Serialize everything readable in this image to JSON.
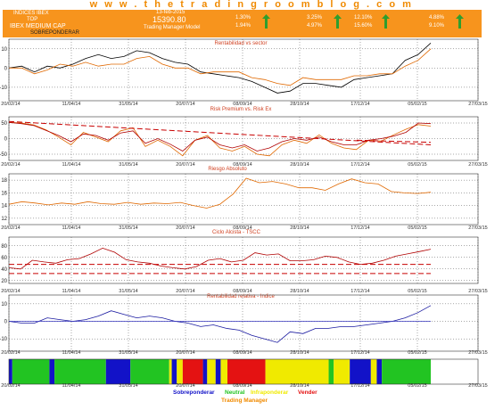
{
  "site_url": "w w w . t h e t r a d i n g r o o m b l o g . c o m",
  "header": {
    "index_name": "INDICES IBEX",
    "line2": "TOP",
    "ticker": "IBEX MEDIUM CAP",
    "status": "SOBREPONDERAR",
    "date": "13-feb-2015",
    "price": "15390.80",
    "model": "Trading Manager Model",
    "stats": [
      {
        "top": "1.30%",
        "bottom": "1.94%"
      },
      {
        "top": "3.25%",
        "bottom": "4.97%"
      },
      {
        "top": "12.10%",
        "bottom": "15.60%"
      },
      {
        "top": "4.88%",
        "bottom": "9.10%"
      }
    ],
    "colors": {
      "bar": "#f7941d",
      "arrow": "#2e9e2e"
    }
  },
  "legend": {
    "items": [
      {
        "label": "Sobreponderar",
        "color": "#1212c8"
      },
      {
        "label": "Neutral",
        "color": "#22c422"
      },
      {
        "label": "Infraponderar",
        "color": "#f0ea00"
      },
      {
        "label": "Vender",
        "color": "#e41212"
      }
    ],
    "caption": "Trading Manager"
  },
  "chart_data": [
    {
      "type": "line",
      "title": "Rentabilidad vs sector",
      "x_ticks": [
        "20/02/14",
        "11/04/14",
        "31/05/14",
        "20/07/14",
        "08/09/14",
        "28/10/14",
        "17/12/14",
        "05/02/15",
        "27/03/15"
      ],
      "y_ticks": [
        10,
        0,
        -10
      ],
      "ylim": [
        -17,
        15
      ],
      "grid": true,
      "series": [
        {
          "color": "#000000",
          "values": [
            0,
            1,
            -2,
            1,
            0,
            2,
            5,
            7,
            5,
            6,
            9,
            8,
            5,
            3,
            2,
            -2,
            -3,
            -4,
            -5,
            -7,
            -10,
            -13,
            -12,
            -8,
            -8,
            -9,
            -10,
            -6,
            -5,
            -4,
            -3,
            4,
            7,
            13
          ]
        },
        {
          "color": "#e06800",
          "values": [
            0,
            0,
            -3,
            -1,
            2,
            1,
            3,
            1,
            2,
            2,
            5,
            6,
            2,
            0,
            0,
            -3,
            -2,
            -2,
            -2,
            -5,
            -6,
            -8,
            -9,
            -5,
            -6,
            -6,
            -6,
            -4,
            -4,
            -3,
            -3,
            1,
            4,
            10
          ]
        }
      ]
    },
    {
      "type": "line",
      "title": "Risk Premium vs. Risk Ex",
      "x_ticks": [
        "20/02/14",
        "11/04/14",
        "31/05/14",
        "20/07/14",
        "08/09/14",
        "28/10/14",
        "17/12/14",
        "05/02/15",
        "27/03/15"
      ],
      "y_ticks": [
        50,
        0,
        -50
      ],
      "ylim": [
        -70,
        70
      ],
      "grid": true,
      "series": [
        {
          "color": "#e06800",
          "values": [
            52,
            50,
            44,
            28,
            5,
            -20,
            20,
            5,
            -10,
            25,
            35,
            -25,
            -5,
            -25,
            -55,
            -5,
            10,
            -30,
            -40,
            -25,
            -50,
            -55,
            -20,
            -5,
            -15,
            12,
            -15,
            -30,
            -35,
            -5,
            -8,
            12,
            30,
            45,
            40
          ]
        },
        {
          "color": "#b00000",
          "values": [
            52,
            48,
            42,
            26,
            10,
            -10,
            15,
            10,
            -5,
            18,
            25,
            -15,
            0,
            -18,
            -40,
            -5,
            5,
            -20,
            -30,
            -20,
            -40,
            -30,
            -10,
            0,
            -5,
            5,
            -10,
            -20,
            -20,
            -5,
            0,
            8,
            20,
            50,
            48
          ]
        },
        {
          "color": "#c80000",
          "dashed": true,
          "values": [
            55,
            -20
          ]
        },
        {
          "color": "#c80000",
          "dashed": true,
          "values": [
            -5,
            -12
          ]
        }
      ]
    },
    {
      "type": "line",
      "title": "Riesgo Absoluto",
      "x_ticks": [
        "20/02/14",
        "11/04/14",
        "31/05/14",
        "20/07/14",
        "08/09/14",
        "28/10/14",
        "17/12/14",
        "05/02/15",
        "27/03/15"
      ],
      "y_ticks": [
        18,
        16,
        14,
        12
      ],
      "ylim": [
        11,
        19
      ],
      "grid": true,
      "series": [
        {
          "color": "#e06800",
          "values": [
            14.2,
            14.6,
            14.4,
            14.1,
            14.4,
            14.2,
            14.6,
            14.3,
            14.2,
            14.5,
            14.2,
            14.4,
            14.3,
            14.5,
            14.0,
            13.6,
            14.2,
            15.8,
            18.3,
            17.6,
            17.8,
            17.4,
            16.8,
            16.8,
            16.4,
            17.4,
            18.2,
            17.6,
            17.4,
            16.2,
            16.0,
            15.9,
            16.1
          ]
        }
      ]
    },
    {
      "type": "line",
      "title": "Ciclo Alcista - TSCC",
      "x_ticks": [
        "20/02/14",
        "11/04/14",
        "31/05/14",
        "20/07/14",
        "08/09/14",
        "28/10/14",
        "17/12/14",
        "05/02/15",
        "27/03/15"
      ],
      "y_ticks": [
        80,
        60,
        40,
        20
      ],
      "ylim": [
        15,
        95
      ],
      "grid": true,
      "series": [
        {
          "color": "#b00000",
          "values": [
            42,
            40,
            55,
            52,
            50,
            56,
            58,
            66,
            76,
            69,
            56,
            52,
            50,
            45,
            42,
            40,
            44,
            55,
            58,
            52,
            55,
            68,
            64,
            66,
            54,
            54,
            56,
            62,
            60,
            52,
            48,
            50,
            55,
            62,
            66,
            70,
            74
          ]
        },
        {
          "color": "#c80000",
          "dashed": true,
          "values": [
            48,
            48
          ]
        },
        {
          "color": "#c80000",
          "dashed": true,
          "values": [
            32,
            32
          ]
        }
      ]
    },
    {
      "type": "line",
      "title": "Rentabilidad relativa - Indice",
      "x_ticks": [
        "20/02/14",
        "11/04/14",
        "31/05/14",
        "20/07/14",
        "08/09/14",
        "28/10/14",
        "17/12/14",
        "05/02/15",
        "27/03/15"
      ],
      "y_ticks": [
        10,
        0,
        -10
      ],
      "ylim": [
        -17,
        15
      ],
      "grid": true,
      "series": [
        {
          "color": "#1a1aa0",
          "values": [
            0,
            -1,
            -1,
            2,
            1,
            0,
            1,
            3,
            6,
            4,
            2,
            3,
            2,
            0,
            -1,
            -3,
            -2,
            -4,
            -5,
            -8,
            -10,
            -12,
            -6,
            -7,
            -4,
            -4,
            -3,
            -3,
            -2,
            -1,
            0,
            2,
            5,
            9
          ]
        },
        {
          "color": "#3a3ac0",
          "values": [
            0,
            0
          ]
        }
      ]
    },
    {
      "type": "heatmap",
      "title": "",
      "x_ticks": [
        "20/02/14",
        "11/04/14",
        "31/05/14",
        "20/07/14",
        "08/09/14",
        "28/10/14",
        "17/12/14",
        "05/02/15",
        "27/03/15"
      ],
      "segments": [
        {
          "state": "Sobreponderar",
          "fraction": 0.008
        },
        {
          "state": "Neutral",
          "fraction": 0.088
        },
        {
          "state": "Sobreponderar",
          "fraction": 0.012
        },
        {
          "state": "Neutral",
          "fraction": 0.122
        },
        {
          "state": "Sobreponderar",
          "fraction": 0.058
        },
        {
          "state": "Neutral",
          "fraction": 0.092
        },
        {
          "state": "Infraponderar",
          "fraction": 0.006
        },
        {
          "state": "Sobreponderar",
          "fraction": 0.012
        },
        {
          "state": "Infraponderar",
          "fraction": 0.014
        },
        {
          "state": "Vender",
          "fraction": 0.048
        },
        {
          "state": "Sobreponderar",
          "fraction": 0.01
        },
        {
          "state": "Infraponderar",
          "fraction": 0.02
        },
        {
          "state": "Sobreponderar",
          "fraction": 0.012
        },
        {
          "state": "Infraponderar",
          "fraction": 0.016
        },
        {
          "state": "Vender",
          "fraction": 0.09
        },
        {
          "state": "Infraponderar",
          "fraction": 0.15
        },
        {
          "state": "Neutral",
          "fraction": 0.012
        },
        {
          "state": "Infraponderar",
          "fraction": 0.038
        },
        {
          "state": "Sobreponderar",
          "fraction": 0.05
        },
        {
          "state": "Infraponderar",
          "fraction": 0.014
        },
        {
          "state": "Sobreponderar",
          "fraction": 0.012
        },
        {
          "state": "Neutral",
          "fraction": 0.116
        }
      ]
    }
  ]
}
